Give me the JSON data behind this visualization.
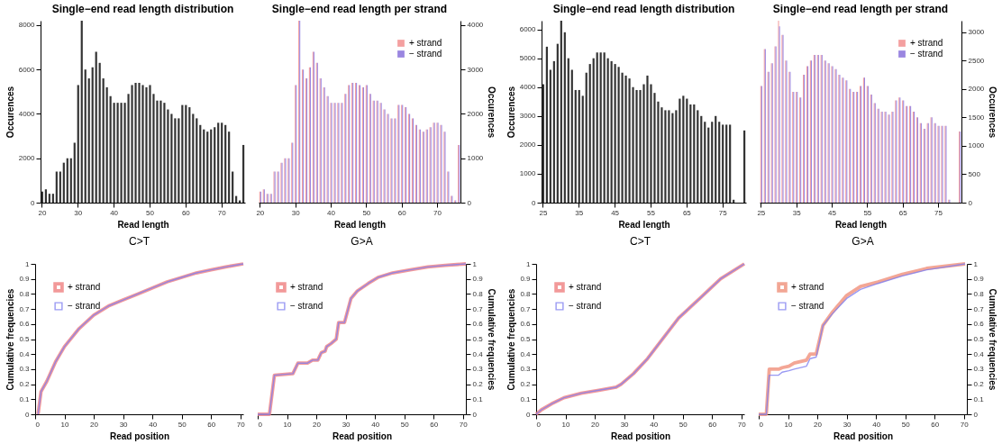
{
  "chart_data": [
    {
      "type": "bar",
      "title": "Single−end read length distribution",
      "xlabel": "Read length",
      "ylabel": "Occurences",
      "ylim": [
        0,
        8200
      ],
      "yticks": [
        0,
        2000,
        4000,
        6000,
        8000
      ],
      "categories": [
        "20",
        null,
        null,
        null,
        null,
        null,
        null,
        null,
        null,
        null,
        "30",
        null,
        null,
        null,
        null,
        null,
        null,
        null,
        null,
        null,
        "40",
        null,
        null,
        null,
        null,
        null,
        null,
        null,
        null,
        null,
        "50",
        null,
        null,
        null,
        null,
        null,
        null,
        null,
        null,
        null,
        "60",
        null,
        null,
        null,
        null,
        null,
        null,
        null,
        null,
        null,
        "70",
        null,
        null,
        null,
        null,
        null,
        null
      ],
      "series": [
        {
          "color": "#333333",
          "values": [
            500,
            600,
            400,
            400,
            1400,
            1400,
            1800,
            2000,
            2000,
            2700,
            5300,
            8200,
            6000,
            5600,
            6100,
            6800,
            6300,
            5600,
            5200,
            4800,
            4500,
            4500,
            4500,
            4500,
            4900,
            5300,
            5400,
            5400,
            5300,
            5200,
            5300,
            4900,
            4600,
            4600,
            4500,
            4200,
            4000,
            3800,
            3800,
            4400,
            4400,
            4300,
            4000,
            3800,
            3500,
            3300,
            3200,
            3300,
            3400,
            3600,
            3600,
            3500,
            3200,
            1400,
            300,
            100,
            2600
          ]
        }
      ]
    },
    {
      "type": "bar",
      "title": "Single−end read length per strand",
      "xlabel": "Read length",
      "y2label": "Occurences",
      "y2lim": [
        0,
        4100
      ],
      "y2ticks": [
        0,
        1000,
        2000,
        3000,
        4000
      ],
      "legend": "top right",
      "categories": [
        "20",
        null,
        null,
        null,
        null,
        null,
        null,
        null,
        null,
        null,
        "30",
        null,
        null,
        null,
        null,
        null,
        null,
        null,
        null,
        null,
        "40",
        null,
        null,
        null,
        null,
        null,
        null,
        null,
        null,
        null,
        "50",
        null,
        null,
        null,
        null,
        null,
        null,
        null,
        null,
        null,
        "60",
        null,
        null,
        null,
        null,
        null,
        null,
        null,
        null,
        null,
        "70",
        null,
        null,
        null,
        null,
        null,
        null
      ],
      "series": [
        {
          "name": "+ strand",
          "color": "#f4a0a0",
          "axis": "y2",
          "values": [
            250,
            300,
            200,
            200,
            700,
            700,
            900,
            1000,
            1000,
            1350,
            2650,
            4100,
            3000,
            2800,
            3050,
            3400,
            3150,
            2800,
            2600,
            2400,
            2250,
            2250,
            2250,
            2250,
            2450,
            2650,
            2700,
            2700,
            2650,
            2600,
            2650,
            2450,
            2300,
            2300,
            2250,
            2100,
            2000,
            1900,
            1900,
            2200,
            2200,
            2150,
            2000,
            1900,
            1750,
            1650,
            1600,
            1650,
            1700,
            1800,
            1800,
            1750,
            1600,
            700,
            150,
            50,
            1300
          ]
        },
        {
          "name": "− strand",
          "color": "#9a86e0",
          "axis": "y2",
          "values": [
            250,
            300,
            200,
            200,
            700,
            700,
            900,
            1000,
            1000,
            1350,
            2650,
            4100,
            3000,
            2800,
            3050,
            3400,
            3150,
            2800,
            2600,
            2400,
            2250,
            2250,
            2250,
            2250,
            2450,
            2650,
            2700,
            2700,
            2650,
            2600,
            2650,
            2450,
            2300,
            2300,
            2250,
            2100,
            2000,
            1900,
            1900,
            2200,
            2200,
            2150,
            2000,
            1900,
            1750,
            1650,
            1600,
            1650,
            1700,
            1800,
            1800,
            1750,
            1600,
            700,
            150,
            50,
            1300
          ]
        }
      ]
    },
    {
      "type": "bar",
      "title": "Single−end read length distribution",
      "xlabel": "Read length",
      "ylabel": "Occurences",
      "ylim": [
        0,
        6300
      ],
      "yticks": [
        0,
        1000,
        2000,
        3000,
        4000,
        5000,
        6000
      ],
      "categories": [
        "25",
        null,
        null,
        null,
        null,
        null,
        null,
        null,
        null,
        null,
        "35",
        null,
        null,
        null,
        null,
        null,
        null,
        null,
        null,
        null,
        "45",
        null,
        null,
        null,
        null,
        null,
        null,
        null,
        null,
        null,
        "55",
        null,
        null,
        null,
        null,
        null,
        null,
        null,
        null,
        null,
        "65",
        null,
        null,
        null,
        null,
        null,
        null,
        null,
        null,
        null,
        "75",
        null,
        null,
        null,
        null,
        null,
        null
      ],
      "series": [
        {
          "color": "#333333",
          "values": [
            4100,
            5400,
            4600,
            4900,
            5500,
            6300,
            5900,
            5000,
            4600,
            3900,
            3900,
            3700,
            4500,
            4800,
            5000,
            5200,
            5200,
            5200,
            5000,
            4900,
            4800,
            4700,
            4500,
            4400,
            4300,
            4000,
            3900,
            3900,
            4100,
            4400,
            4100,
            3800,
            3500,
            3300,
            3200,
            3200,
            3100,
            3200,
            3600,
            3700,
            3600,
            3400,
            3400,
            3200,
            3000,
            2800,
            2600,
            2800,
            3000,
            2800,
            2700,
            2700,
            2700,
            100,
            null,
            null,
            2500
          ]
        }
      ]
    },
    {
      "type": "bar",
      "title": "Single−end read length per strand",
      "xlabel": "Read length",
      "y2label": "Occurences",
      "y2lim": [
        0,
        3200
      ],
      "y2ticks": [
        0,
        500,
        1000,
        1500,
        2000,
        2500,
        3000
      ],
      "legend": "top right",
      "categories": [
        "25",
        null,
        null,
        null,
        null,
        null,
        null,
        null,
        null,
        null,
        "35",
        null,
        null,
        null,
        null,
        null,
        null,
        null,
        null,
        null,
        "45",
        null,
        null,
        null,
        null,
        null,
        null,
        null,
        null,
        null,
        "55",
        null,
        null,
        null,
        null,
        null,
        null,
        null,
        null,
        null,
        "65",
        null,
        null,
        null,
        null,
        null,
        null,
        null,
        null,
        null,
        "75",
        null,
        null,
        null,
        null,
        null,
        null
      ],
      "series": [
        {
          "name": "+ strand",
          "color": "#f4a0a0",
          "axis": "y2",
          "values": [
            2050,
            2700,
            2300,
            2450,
            2750,
            3200,
            2950,
            2500,
            2300,
            1950,
            1950,
            1850,
            2250,
            2400,
            2500,
            2600,
            2600,
            2600,
            2500,
            2450,
            2400,
            2350,
            2250,
            2200,
            2150,
            2000,
            1950,
            1950,
            2050,
            2200,
            2050,
            1900,
            1750,
            1650,
            1600,
            1600,
            1550,
            1600,
            1800,
            1850,
            1800,
            1700,
            1700,
            1600,
            1500,
            1400,
            1300,
            1400,
            1500,
            1400,
            1350,
            1350,
            1350,
            50,
            null,
            null,
            1250
          ]
        },
        {
          "name": "− strand",
          "color": "#9a86e0",
          "axis": "y2",
          "values": [
            2050,
            2700,
            2300,
            2450,
            2750,
            3100,
            2950,
            2500,
            2300,
            1950,
            1950,
            1850,
            2250,
            2400,
            2500,
            2600,
            2600,
            2600,
            2500,
            2450,
            2400,
            2350,
            2250,
            2200,
            2150,
            2000,
            1950,
            1950,
            2050,
            2200,
            2050,
            1900,
            1750,
            1650,
            1600,
            1600,
            1550,
            1600,
            1800,
            1850,
            1800,
            1700,
            1700,
            1600,
            1500,
            1400,
            1300,
            1400,
            1500,
            1400,
            1350,
            1350,
            1350,
            50,
            null,
            null,
            1250
          ]
        }
      ]
    },
    {
      "type": "line",
      "title": "C>T",
      "xlabel": "Read position",
      "ylabel": "Cumulative frequencies",
      "xlim": [
        0,
        71
      ],
      "xticks": [
        0,
        10,
        20,
        30,
        40,
        50,
        60,
        70
      ],
      "ylim": [
        0,
        1
      ],
      "yticks": [
        0,
        0.1,
        0.2,
        0.3,
        0.4,
        0.5,
        0.6,
        0.7,
        0.8,
        0.9,
        1
      ],
      "legend": "top left",
      "series": [
        {
          "name": "+ strand",
          "color": "#f08080",
          "x": [
            1,
            2,
            4,
            7,
            10,
            15,
            20,
            25,
            30,
            35,
            40,
            45,
            50,
            55,
            60,
            65,
            71
          ],
          "values": [
            0,
            0.15,
            0.22,
            0.35,
            0.45,
            0.57,
            0.66,
            0.72,
            0.76,
            0.8,
            0.84,
            0.88,
            0.91,
            0.94,
            0.96,
            0.98,
            1
          ]
        },
        {
          "name": "− strand",
          "color": "#8080f0",
          "x": [
            1,
            2,
            4,
            7,
            10,
            15,
            20,
            25,
            30,
            35,
            40,
            45,
            50,
            55,
            60,
            65,
            71
          ],
          "values": [
            0,
            0.15,
            0.22,
            0.35,
            0.45,
            0.57,
            0.66,
            0.72,
            0.76,
            0.8,
            0.84,
            0.88,
            0.91,
            0.94,
            0.96,
            0.98,
            1
          ]
        }
      ]
    },
    {
      "type": "line",
      "title": "G>A",
      "xlabel": "Read position",
      "y2label": "Cumulative frequencies",
      "xlim": [
        0,
        71
      ],
      "xticks": [
        0,
        10,
        20,
        30,
        40,
        50,
        60,
        70
      ],
      "y2lim": [
        0,
        1
      ],
      "y2ticks": [
        0,
        0.1,
        0.2,
        0.3,
        0.4,
        0.5,
        0.6,
        0.7,
        0.8,
        0.9,
        1
      ],
      "legend": "top left",
      "series": [
        {
          "name": "+ strand",
          "color": "#f08080",
          "axis": "y2",
          "x": [
            0,
            4,
            5.7,
            12,
            13.7,
            17,
            18.7,
            20.5,
            21.7,
            23,
            23.5,
            25,
            26.8,
            27.6,
            29.6,
            31.8,
            34,
            37.7,
            41,
            46,
            52,
            58,
            64,
            71
          ],
          "values": [
            0,
            0,
            0.26,
            0.27,
            0.34,
            0.34,
            0.36,
            0.36,
            0.41,
            0.42,
            0.45,
            0.47,
            0.5,
            0.61,
            0.61,
            0.77,
            0.82,
            0.87,
            0.91,
            0.94,
            0.96,
            0.98,
            0.99,
            1
          ]
        },
        {
          "name": "− strand",
          "color": "#8080f0",
          "axis": "y2",
          "x": [
            0,
            4,
            5.7,
            12,
            13.7,
            17,
            18.7,
            20.5,
            21.7,
            23,
            23.5,
            25,
            26.8,
            27.6,
            29.6,
            31.8,
            34,
            37.7,
            41,
            46,
            52,
            58,
            64,
            71
          ],
          "values": [
            0,
            0,
            0.26,
            0.27,
            0.34,
            0.34,
            0.36,
            0.36,
            0.41,
            0.42,
            0.45,
            0.47,
            0.5,
            0.61,
            0.61,
            0.77,
            0.82,
            0.87,
            0.91,
            0.94,
            0.96,
            0.98,
            0.99,
            1
          ]
        }
      ]
    },
    {
      "type": "line",
      "title": "C>T",
      "xlabel": "Read position",
      "ylabel": "Cumulative frequencies",
      "xlim": [
        0,
        71
      ],
      "xticks": [
        0,
        10,
        20,
        30,
        40,
        50,
        60,
        70
      ],
      "ylim": [
        0,
        1
      ],
      "yticks": [
        0,
        0.1,
        0.2,
        0.3,
        0.4,
        0.5,
        0.6,
        0.7,
        0.8,
        0.9,
        1
      ],
      "legend": "top left",
      "series": [
        {
          "name": "+ strand",
          "color": "#f08080",
          "x": [
            0,
            1.8,
            5.3,
            9.5,
            15.4,
            21.4,
            27.3,
            29,
            33.2,
            38,
            42.7,
            48.6,
            55.8,
            62.9,
            71
          ],
          "values": [
            0,
            0.03,
            0.07,
            0.11,
            0.14,
            0.16,
            0.18,
            0.2,
            0.27,
            0.37,
            0.49,
            0.64,
            0.77,
            0.9,
            1
          ]
        },
        {
          "name": "− strand",
          "color": "#8080f0",
          "x": [
            0,
            1.8,
            5.3,
            9.5,
            15.4,
            21.4,
            27.3,
            29,
            33.2,
            38,
            42.7,
            48.6,
            55.8,
            62.9,
            71
          ],
          "values": [
            0,
            0.03,
            0.07,
            0.11,
            0.14,
            0.16,
            0.18,
            0.2,
            0.27,
            0.37,
            0.49,
            0.64,
            0.77,
            0.9,
            1
          ]
        }
      ]
    },
    {
      "type": "line",
      "title": "G>A",
      "xlabel": "Read position",
      "y2label": "Cumulative frequencies",
      "xlim": [
        0,
        71
      ],
      "xticks": [
        0,
        10,
        20,
        30,
        40,
        50,
        60,
        70
      ],
      "y2lim": [
        0,
        1
      ],
      "y2ticks": [
        0,
        0.1,
        0.2,
        0.3,
        0.4,
        0.5,
        0.6,
        0.7,
        0.8,
        0.9,
        1
      ],
      "legend": "top left",
      "series": [
        {
          "name": "+ strand",
          "color": "#f0907a",
          "axis": "y2",
          "x": [
            0,
            2.6,
            3.6,
            6.8,
            8,
            10.3,
            12.1,
            16.3,
            17.5,
            19.6,
            21.9,
            25.2,
            30,
            34.7,
            40.7,
            49,
            57.3,
            70.4
          ],
          "values": [
            0,
            0,
            0.3,
            0.3,
            0.31,
            0.32,
            0.34,
            0.36,
            0.4,
            0.4,
            0.59,
            0.68,
            0.79,
            0.85,
            0.88,
            0.93,
            0.97,
            1
          ]
        },
        {
          "name": "− strand",
          "color": "#8080f0",
          "axis": "y2",
          "x": [
            0,
            2.6,
            3.6,
            6.8,
            8,
            10.3,
            12.1,
            16.3,
            17.5,
            19.6,
            21.9,
            25.2,
            30,
            34.7,
            40.7,
            49,
            57.3,
            70.4
          ],
          "values": [
            0,
            0,
            0.26,
            0.26,
            0.28,
            0.29,
            0.3,
            0.32,
            0.37,
            0.38,
            0.59,
            0.67,
            0.77,
            0.83,
            0.87,
            0.92,
            0.96,
            1
          ]
        }
      ]
    }
  ]
}
